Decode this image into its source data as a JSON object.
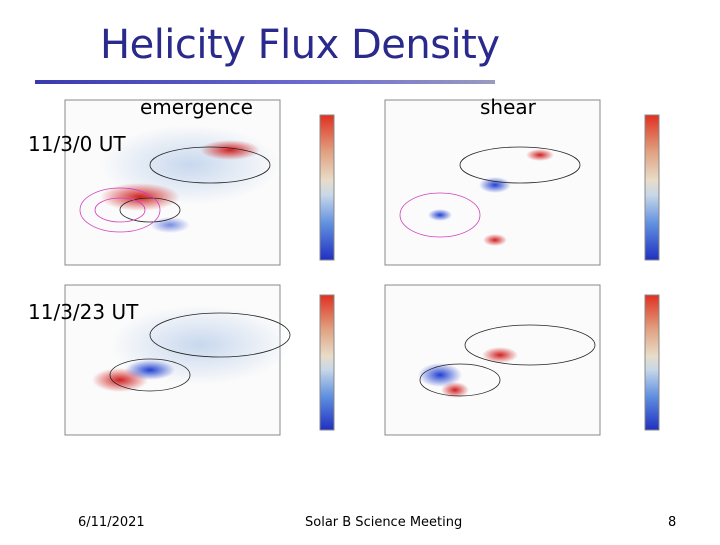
{
  "header": {
    "title": "Helicity Flux Density"
  },
  "columns": [
    "emergence",
    "shear"
  ],
  "rows": [
    "11/3/0 UT",
    "11/3/23 UT"
  ],
  "footer": {
    "date": "6/11/2021",
    "event": "Solar B Science Meeting",
    "page": "8"
  }
}
